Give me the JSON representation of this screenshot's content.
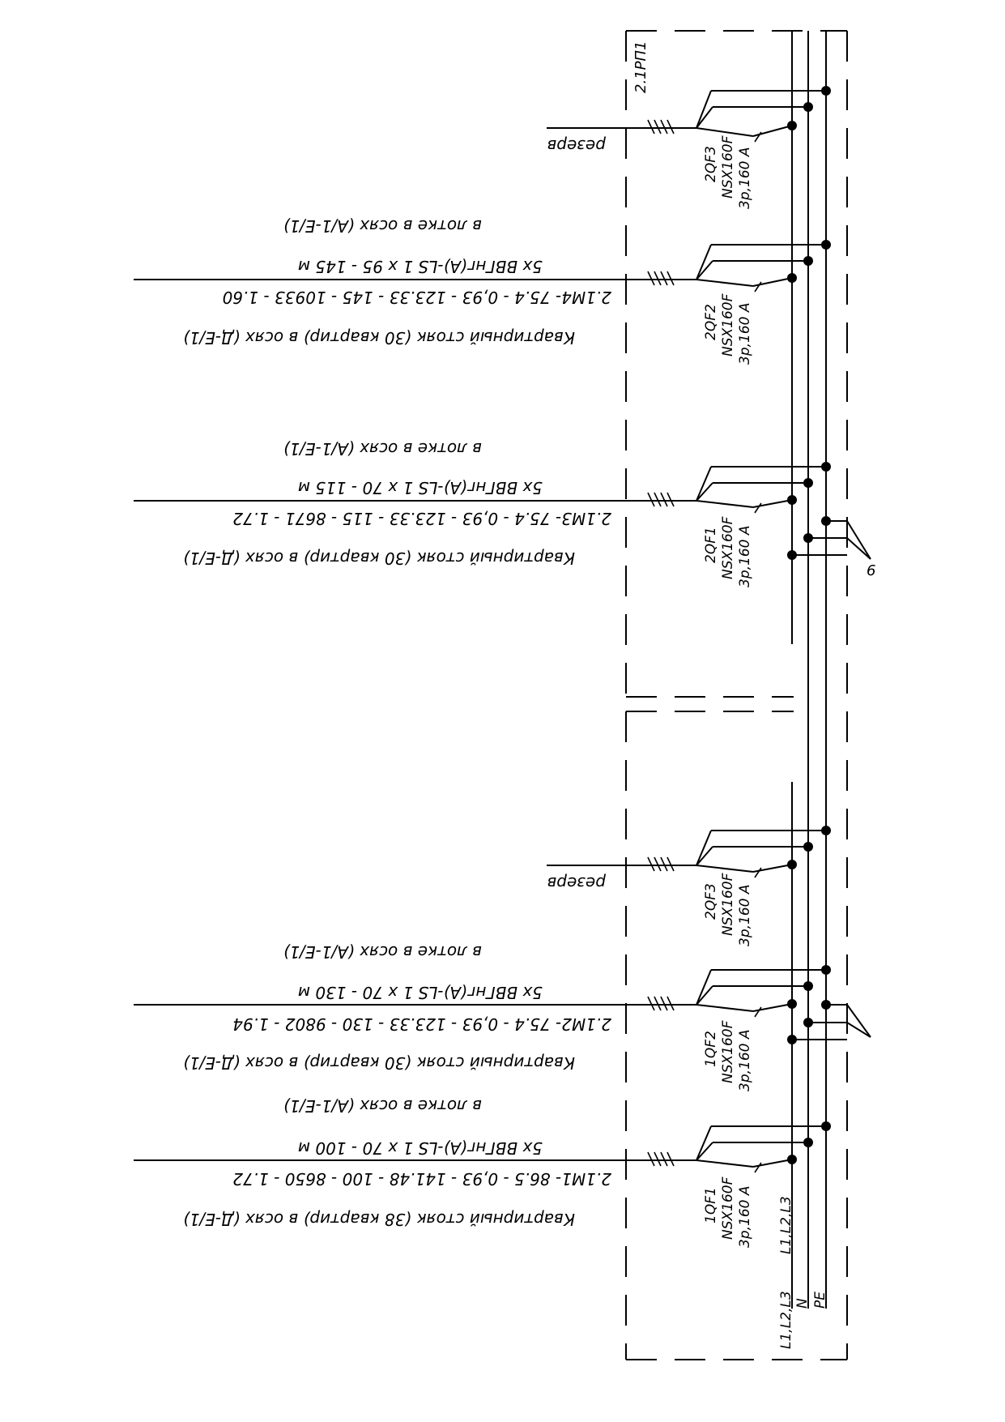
{
  "panel": {
    "name": "2.1РП1",
    "bus_labels": [
      "L1,L2,L3",
      "N",
      "PE"
    ]
  },
  "upper_section": {
    "breakers": [
      {
        "id": "2QF3",
        "model": "NSX160F",
        "rating": "3p,160 A"
      },
      {
        "id": "2QF2",
        "model": "NSX160F",
        "rating": "3p,160 A"
      },
      {
        "id": "2QF1",
        "model": "NSX160F",
        "rating": "3p,160 A"
      }
    ],
    "feeders": [
      {
        "label": "резерв"
      },
      {
        "location": "в лотке в осях (А/1-Е/1)",
        "cable": "5х ВВГнг(А)-LS 1 х 95 - 145 м",
        "calc": "2.1М4- 75.4 - 0,93 - 123.33 - 145 - 10933 - 1.60",
        "consumer": "Квартирный стояк (30 квартир) в осях (Д-Е/1)"
      },
      {
        "location": "в лотке в осях (А/1-Е/1)",
        "cable": "5х ВВГнг(А)-LS 1 х 70 - 115 м",
        "calc": "2.1М3- 75.4 - 0,93 - 123.33 - 115 - 8671 - 1.72",
        "consumer": "Квартирный стояк (30 квартир) в осях (Д-Е/1)"
      }
    ],
    "edge_mark": "6"
  },
  "lower_section": {
    "breakers": [
      {
        "id": "2QF3",
        "model": "NSX160F",
        "rating": "3p,160 A"
      },
      {
        "id": "1QF2",
        "model": "NSX160F",
        "rating": "3p,160 A"
      },
      {
        "id": "1QF1",
        "model": "NSX160F",
        "rating": "3p,160 A",
        "phase": "L1,L2,L3"
      }
    ],
    "feeders": [
      {
        "label": "резерв"
      },
      {
        "location": "в лотке в осях (А/1-Е/1)",
        "cable": "5х ВВГнг(А)-LS 1 х 70 - 130 м",
        "calc": "2.1М2- 75.4 - 0,93 - 123.33 - 130 - 9802 - 1.94",
        "consumer": "Квартирный стояк (30 квартир) в осях (Д-Е/1)"
      },
      {
        "location": "в лотке в осях (А/1-Е/1)",
        "cable": "5х ВВГнг(А)-LS 1 х 70 - 100 м",
        "calc": "2.1М1- 86.5 - 0,93 - 141.48 - 100 - 8650 - 1.72",
        "consumer": "Квартирный стояк (38 квартир) в осях (Д-Е/1)"
      }
    ]
  }
}
